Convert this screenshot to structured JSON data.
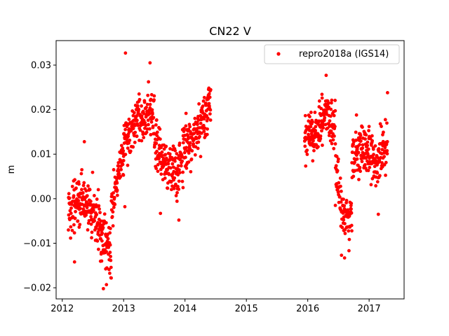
{
  "chart_data": {
    "type": "scatter",
    "title": "CN22 V",
    "xlabel": "",
    "ylabel": "m",
    "xlim": [
      2011.9,
      2017.57
    ],
    "ylim": [
      -0.0225,
      0.0355
    ],
    "xticks": [
      2012,
      2013,
      2014,
      2015,
      2016,
      2017
    ],
    "yticks": [
      -0.02,
      -0.01,
      0.0,
      0.01,
      0.02,
      0.03
    ],
    "ytick_labels": [
      "−0.02",
      "−0.01",
      "0.00",
      "0.01",
      "0.02",
      "0.03"
    ],
    "grid": false,
    "legend_position": "top-right",
    "marker_color": "#ff0000",
    "series": [
      {
        "name": "repro2018a (IGS14)",
        "segments": [
          {
            "x_start": 2012.1,
            "x_end": 2012.8,
            "trend": [
              [
                2012.1,
                -0.003
              ],
              [
                2012.35,
                0.0
              ],
              [
                2012.55,
                -0.004
              ],
              [
                2012.7,
                -0.009
              ],
              [
                2012.78,
                -0.012
              ]
            ],
            "spread": 0.0055
          },
          {
            "x_start": 2012.8,
            "x_end": 2013.0,
            "trend": [
              [
                2012.8,
                -0.002
              ],
              [
                2012.9,
                0.004
              ],
              [
                2013.0,
                0.009
              ]
            ],
            "spread": 0.004
          },
          {
            "x_start": 2013.0,
            "x_end": 2013.5,
            "trend": [
              [
                2013.0,
                0.013
              ],
              [
                2013.2,
                0.017
              ],
              [
                2013.45,
                0.019
              ]
            ],
            "spread": 0.005
          },
          {
            "x_start": 2013.5,
            "x_end": 2013.97,
            "trend": [
              [
                2013.5,
                0.013
              ],
              [
                2013.7,
                0.008
              ],
              [
                2013.85,
                0.006
              ],
              [
                2013.97,
                0.009
              ]
            ],
            "spread": 0.0055
          },
          {
            "x_start": 2013.97,
            "x_end": 2014.42,
            "trend": [
              [
                2013.97,
                0.011
              ],
              [
                2014.15,
                0.014
              ],
              [
                2014.3,
                0.018
              ],
              [
                2014.42,
                0.022
              ]
            ],
            "spread": 0.005
          },
          {
            "x_start": 2015.95,
            "x_end": 2016.45,
            "trend": [
              [
                2015.95,
                0.014
              ],
              [
                2016.15,
                0.015
              ],
              [
                2016.3,
                0.019
              ],
              [
                2016.45,
                0.016
              ]
            ],
            "spread": 0.005
          },
          {
            "x_start": 2016.45,
            "x_end": 2016.72,
            "trend": [
              [
                2016.45,
                0.008
              ],
              [
                2016.55,
                -0.002
              ],
              [
                2016.65,
                -0.006
              ],
              [
                2016.72,
                -0.002
              ]
            ],
            "spread": 0.005
          },
          {
            "x_start": 2016.72,
            "x_end": 2017.3,
            "trend": [
              [
                2016.72,
                0.01
              ],
              [
                2016.9,
                0.011
              ],
              [
                2017.1,
                0.008
              ],
              [
                2017.3,
                0.011
              ]
            ],
            "spread": 0.0055
          }
        ],
        "highlights": [
          [
            2013.03,
            0.0327
          ],
          [
            2013.43,
            0.0305
          ],
          [
            2012.36,
            0.0128
          ],
          [
            2012.2,
            -0.0142
          ],
          [
            2012.67,
            -0.0202
          ],
          [
            2012.72,
            -0.0193
          ],
          [
            2013.6,
            -0.0033
          ],
          [
            2013.9,
            -0.0048
          ],
          [
            2016.3,
            0.0277
          ],
          [
            2016.6,
            -0.0133
          ],
          [
            2016.45,
            -0.0015
          ],
          [
            2017.3,
            0.0238
          ],
          [
            2013.02,
            -0.0018
          ],
          [
            2016.55,
            -0.0127
          ],
          [
            2017.15,
            -0.0035
          ]
        ]
      }
    ]
  }
}
